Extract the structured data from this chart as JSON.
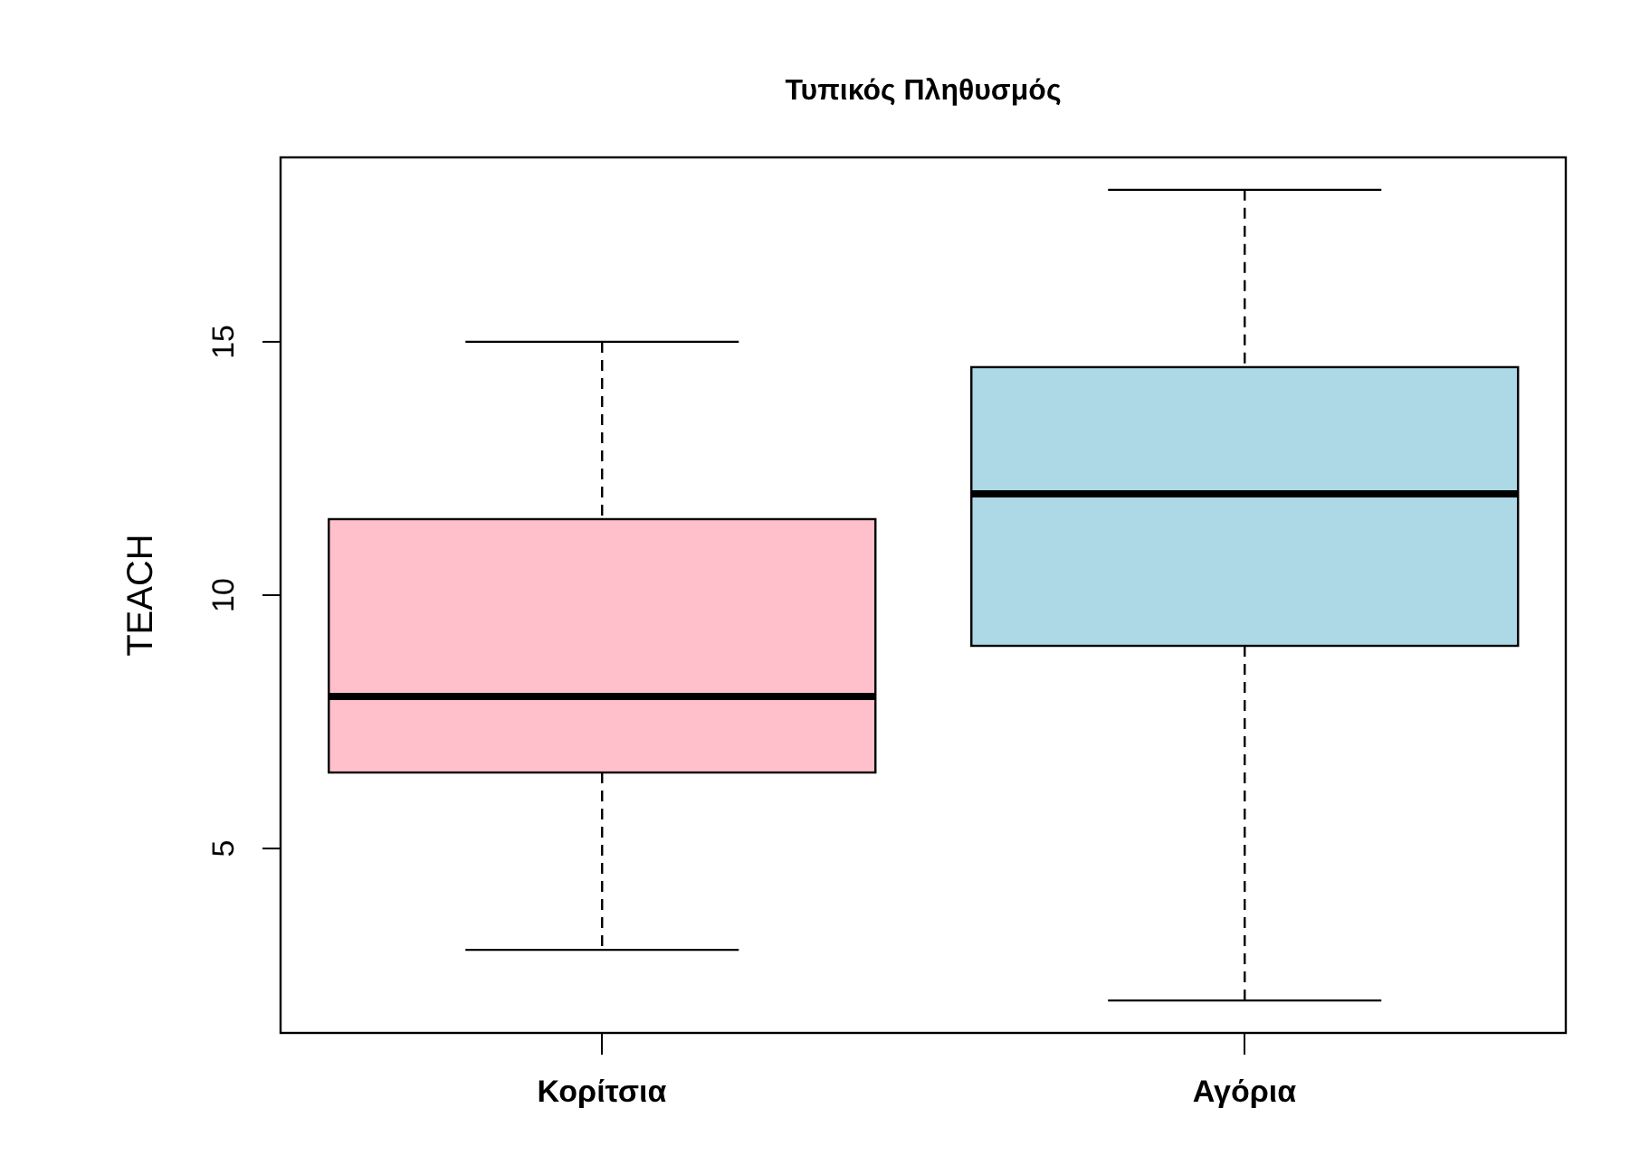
{
  "chart_data": {
    "type": "box",
    "title": "Τυπικός Πληθυσμός",
    "ylabel": "TEACH",
    "categories": [
      "Κορίτσια",
      "Αγόρια"
    ],
    "colors": [
      "#ffc0cb",
      "#add8e6"
    ],
    "boxes": [
      {
        "low": 3,
        "q1": 6.5,
        "median": 8,
        "q3": 11.5,
        "high": 15
      },
      {
        "low": 2,
        "q1": 9,
        "median": 12,
        "q3": 14.5,
        "high": 18
      }
    ],
    "ylim": [
      1.36,
      18.64
    ],
    "yticks": [
      5,
      10,
      15
    ]
  }
}
